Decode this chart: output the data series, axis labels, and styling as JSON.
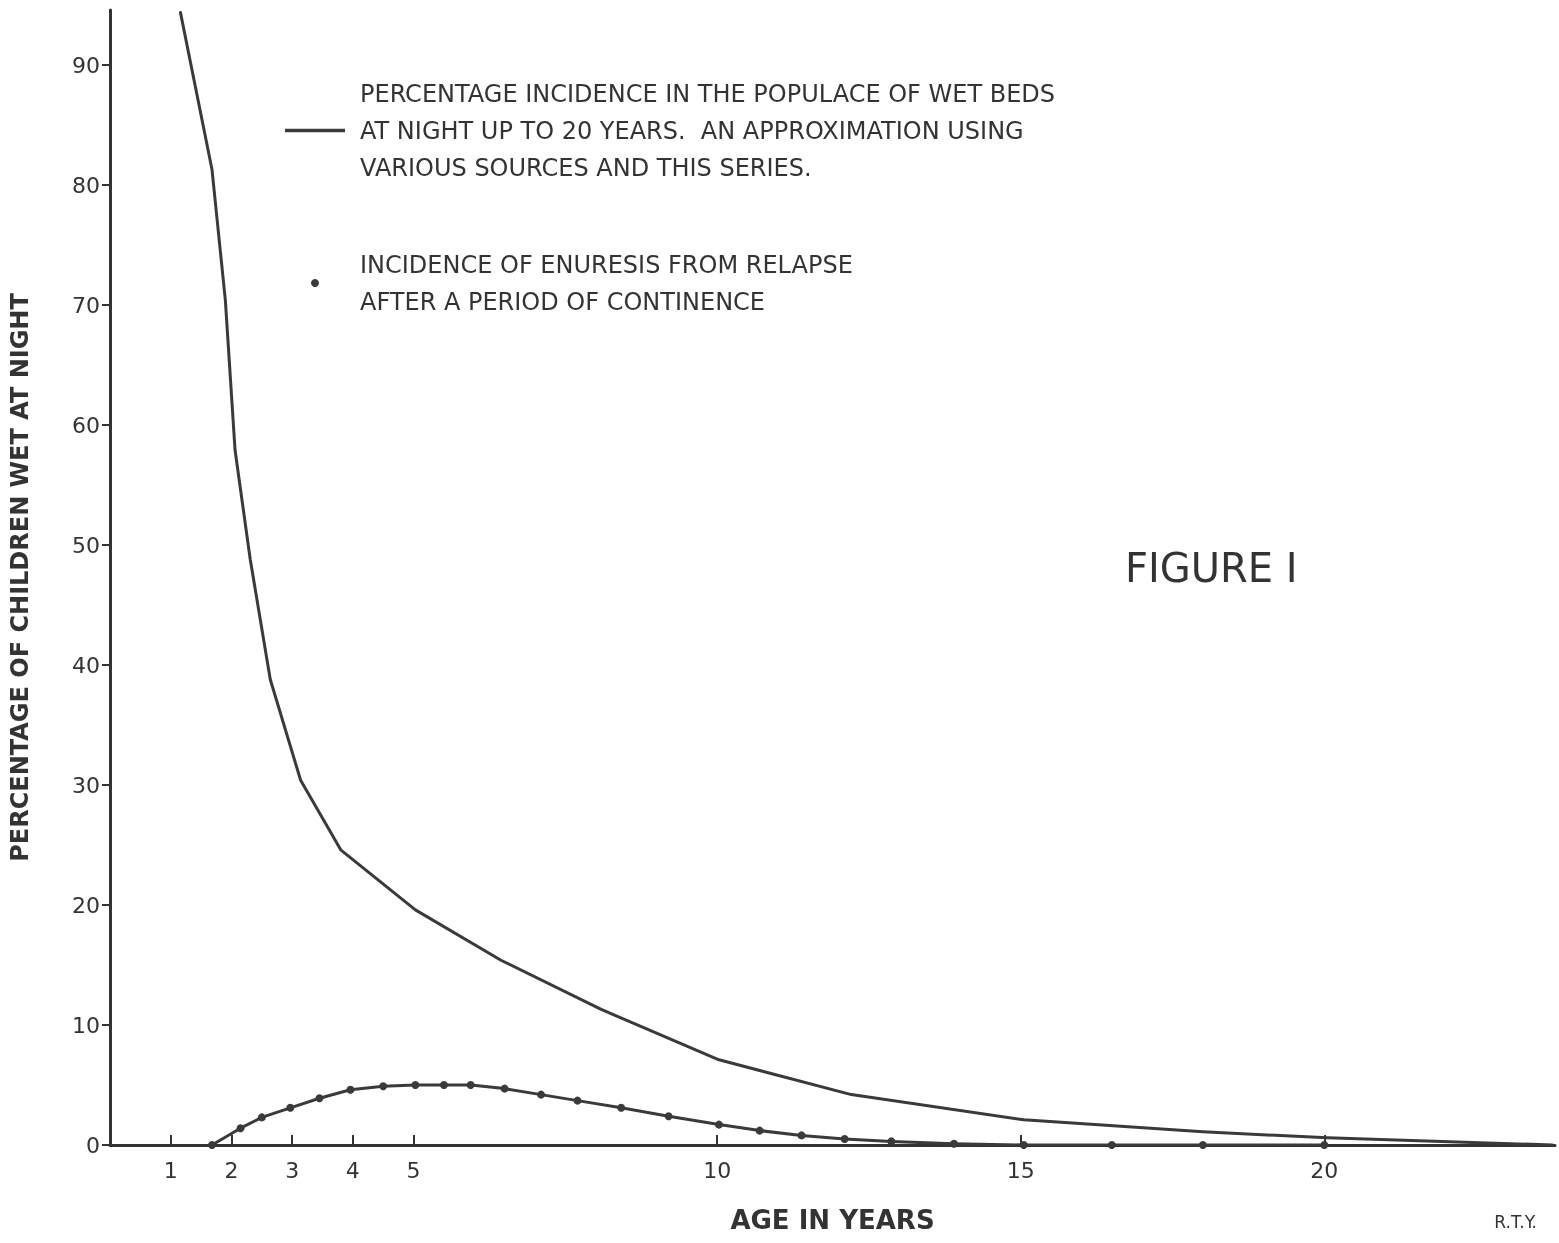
{
  "chart_data": {
    "type": "line",
    "xlabel": "AGE IN YEARS",
    "ylabel": "PERCENTAGE OF CHILDREN WET AT NIGHT",
    "annotations": [
      "FIGURE I",
      "R.T.Y."
    ],
    "xlim": [
      0,
      23.8
    ],
    "xticks": [
      1,
      2,
      3,
      4,
      5,
      10,
      15,
      20
    ],
    "ylim": [
      0,
      94.6
    ],
    "yticks": [
      0,
      10,
      20,
      30,
      40,
      50,
      60,
      70,
      80,
      90
    ],
    "grid": false,
    "legend": "top",
    "series": [
      {
        "name": "PERCENTAGE INCIDENCE IN THE POPULACE OF WET BEDS\nAT NIGHT UP TO 20 YEARS.  AN APPROXIMATION USING\nVARIOUS SOURCES AND THIS SERIES.",
        "color": "#3a3a3a",
        "marker": "none",
        "x": [
          1.16,
          1.68,
          1.9,
          2.06,
          2.31,
          2.64,
          3.14,
          3.8,
          5.03,
          6.44,
          8.09,
          10.03,
          12.21,
          15.05,
          18.0,
          20.05,
          23.76
        ],
        "values": [
          94.4,
          81.3,
          70.4,
          57.9,
          48.8,
          38.8,
          30.4,
          24.6,
          19.6,
          15.4,
          11.3,
          7.1,
          4.2,
          2.1,
          1.1,
          0.6,
          0
        ]
      },
      {
        "name": "INCIDENCE OF ENURESIS FROM RELAPSE\nAFTER A PERIOD OF CONTINENCE",
        "color": "#3a3a3a",
        "marker": "circle",
        "x": [
          1.68,
          2.15,
          2.5,
          2.97,
          3.45,
          3.96,
          4.5,
          5.03,
          5.5,
          5.94,
          6.5,
          7.1,
          7.7,
          8.42,
          9.2,
          10.03,
          10.7,
          11.39,
          12.1,
          12.87,
          13.9,
          15.05,
          16.5,
          18.0,
          20.0
        ],
        "values": [
          0,
          1.4,
          2.3,
          3.1,
          3.9,
          4.6,
          4.9,
          5.0,
          5.0,
          5.0,
          4.7,
          4.2,
          3.7,
          3.1,
          2.4,
          1.7,
          1.2,
          0.8,
          0.5,
          0.3,
          0.1,
          0,
          0,
          0,
          0
        ]
      }
    ]
  }
}
